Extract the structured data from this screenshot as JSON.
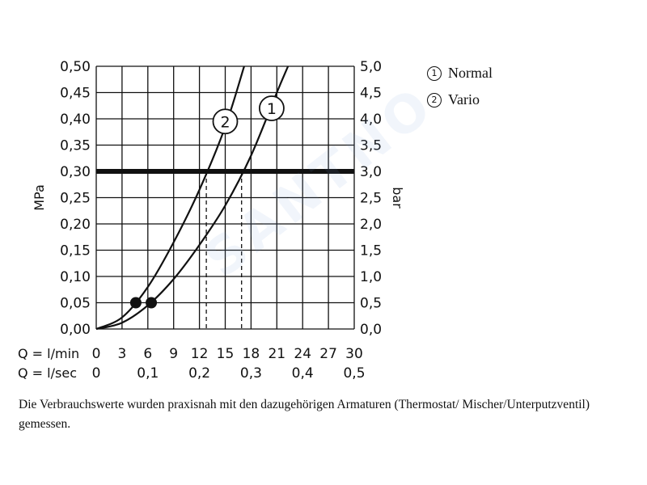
{
  "chart_data": {
    "type": "line",
    "x_axis": {
      "prefix": "Q = l/min",
      "ticks": [
        0,
        3,
        6,
        9,
        12,
        15,
        18,
        21,
        24,
        27,
        30
      ],
      "range": [
        0,
        30
      ]
    },
    "x_axis_secondary": {
      "prefix": "Q = l/sec",
      "ticks": [
        {
          "x": 0,
          "label": "0"
        },
        {
          "x": 6,
          "label": "0,1"
        },
        {
          "x": 12,
          "label": "0,2"
        },
        {
          "x": 18,
          "label": "0,3"
        },
        {
          "x": 24,
          "label": "0,4"
        },
        {
          "x": 30,
          "label": "0,5"
        }
      ]
    },
    "y_left": {
      "label": "MPa",
      "range": [
        0,
        0.5
      ],
      "ticks": [
        "0,00",
        "0,05",
        "0,10",
        "0,15",
        "0,20",
        "0,25",
        "0,30",
        "0,35",
        "0,40",
        "0,45",
        "0,50"
      ]
    },
    "y_right": {
      "label": "bar",
      "ticks": [
        "0,0",
        "0,5",
        "1,0",
        "1,5",
        "2,0",
        "2,5",
        "3,0",
        "3,5",
        "4,0",
        "4,5",
        "5,0"
      ]
    },
    "reference_line": {
      "y": 0.3
    },
    "markers": [
      {
        "series": "2",
        "x": 4.6,
        "y": 0.05
      },
      {
        "series": "1",
        "x": 6.4,
        "y": 0.05
      }
    ],
    "drop_lines": [
      {
        "series": "2",
        "x": 12.8,
        "y": 0.3
      },
      {
        "series": "1",
        "x": 16.9,
        "y": 0.3
      }
    ],
    "series": [
      {
        "id": "1",
        "label_symbol": "1",
        "label_at": {
          "x": 20.4,
          "y": 0.42
        },
        "points": [
          [
            0,
            0
          ],
          [
            3,
            0.012
          ],
          [
            6,
            0.045
          ],
          [
            9,
            0.095
          ],
          [
            12,
            0.16
          ],
          [
            15,
            0.235
          ],
          [
            18,
            0.33
          ],
          [
            21,
            0.45
          ],
          [
            22.3,
            0.5
          ]
        ]
      },
      {
        "id": "2",
        "label_symbol": "2",
        "label_at": {
          "x": 15,
          "y": 0.395
        },
        "points": [
          [
            0,
            0
          ],
          [
            3,
            0.022
          ],
          [
            6,
            0.08
          ],
          [
            9,
            0.165
          ],
          [
            12,
            0.265
          ],
          [
            15,
            0.385
          ],
          [
            17.2,
            0.5
          ]
        ]
      }
    ],
    "grid": true
  },
  "legend": {
    "items": [
      {
        "symbol": "1",
        "label": "Normal"
      },
      {
        "symbol": "2",
        "label": "Vario"
      }
    ]
  },
  "caption": {
    "text": "Die Verbrauchswerte wurden praxisnah mit den dazugehörigen Armaturen (Thermostat/ Mischer/Unterputzventil) gemessen."
  },
  "watermark": {
    "text": "SANTNO"
  }
}
